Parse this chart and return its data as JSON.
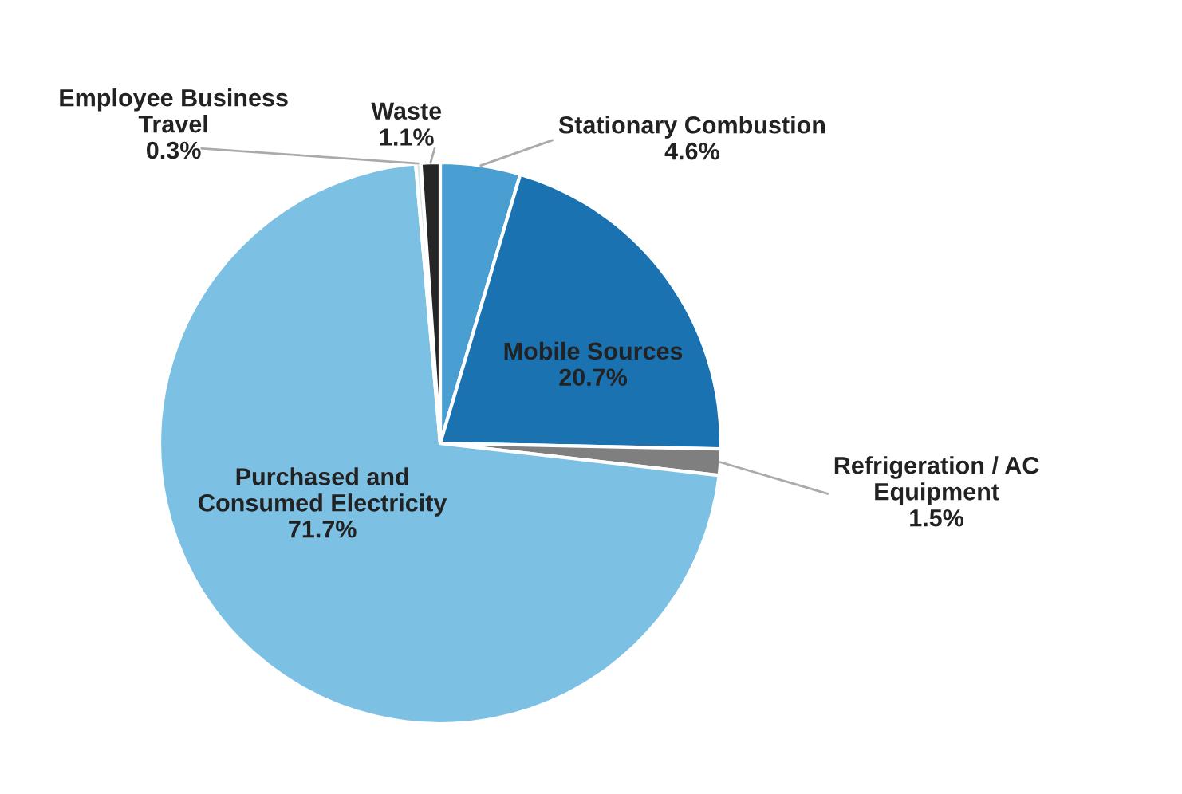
{
  "chart_data": {
    "type": "pie",
    "categories": [
      "Stationary Combustion",
      "Mobile Sources",
      "Refrigeration / AC Equipment",
      "Purchased and Consumed Electricity",
      "Employee Business Travel",
      "Waste"
    ],
    "values": [
      4.6,
      20.7,
      1.5,
      71.7,
      0.3,
      1.1
    ],
    "colors": [
      "#4a9fd2",
      "#1b72b1",
      "#7f7f7f",
      "#7cc1e4",
      "#d9e6ee",
      "#262626"
    ],
    "value_labels": [
      "4.6%",
      "20.7%",
      "1.5%",
      "71.7%",
      "0.3%",
      "1.1%"
    ]
  }
}
